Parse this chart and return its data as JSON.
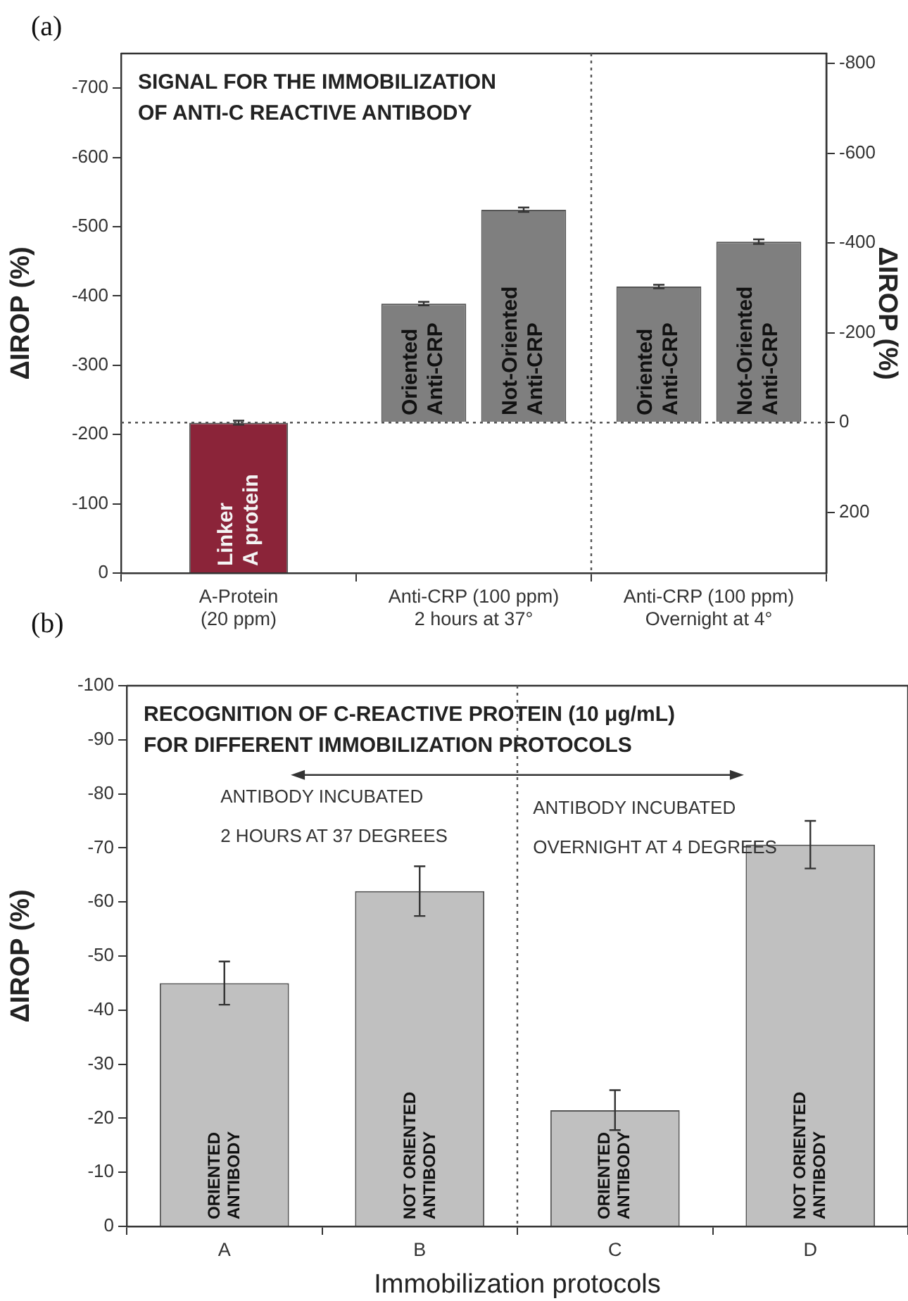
{
  "chart_data": [
    {
      "type": "bar",
      "title": "SIGNAL FOR THE IMMOBILIZATION\nOF ANTI-C REACTIVE ANTIBODY",
      "ylabel": "ΔIROP (%)",
      "y2label": "ΔIROP (%)",
      "annotations": [
        "(a)"
      ],
      "categories": [
        "A-Protein\n(20 ppm)",
        "Anti-CRP (100 ppm)\n2 hours at 37°",
        "Anti-CRP (100 ppm)\nOvernight at 4°"
      ],
      "series": [
        {
          "name": "Linker\nA protein",
          "color": "#8b2439",
          "values": [
            -217,
            null,
            null
          ],
          "errors": [
            3,
            null,
            null
          ]
        },
        {
          "name": "Oriented\nAnti-CRP",
          "color": "#7f7f7f",
          "axis": "y2",
          "values": [
            null,
            -265,
            -303
          ],
          "errors": [
            null,
            4,
            4
          ]
        },
        {
          "name": "Not-Oriented\nAnti-CRP",
          "color": "#7f7f7f",
          "axis": "y2",
          "values": [
            null,
            -474,
            -403
          ],
          "errors": [
            null,
            5,
            5
          ]
        }
      ],
      "ylim": [
        0,
        -750
      ],
      "yticks": [
        0,
        -100,
        -200,
        -300,
        -400,
        -500,
        -600,
        -700
      ],
      "y2lim": [
        335,
        -822
      ],
      "y2ticks": [
        200,
        0,
        -200,
        -400,
        -600,
        -800
      ],
      "ref_lines": [
        {
          "axis": "y2",
          "value": 0,
          "line_style": "dotted"
        }
      ],
      "grid": false,
      "legend": false
    },
    {
      "type": "bar",
      "title": "RECOGNITION OF C-REACTIVE PROTEIN (10 μg/mL)\nFOR DIFFERENT IMMOBILIZATION PROTOCOLS",
      "xlabel": "Immobilization protocols",
      "ylabel": "ΔIROP (%)",
      "annotations": [
        "(b)",
        "ANTIBODY INCUBATED\n2 HOURS AT 37 DEGREES",
        "ANTIBODY INCUBATED\nOVERNIGHT AT 4 DEGREES"
      ],
      "categories": [
        "A",
        "B",
        "C",
        "D"
      ],
      "series": [
        {
          "name": "ORIENTED\nANTIBODY",
          "color": "#c0c0c0",
          "values": [
            -45,
            null,
            -21.5,
            null
          ],
          "errors": [
            4,
            null,
            3.7,
            null
          ]
        },
        {
          "name": "NOT ORIENTED\nANTIBODY",
          "color": "#c0c0c0",
          "values": [
            null,
            -62,
            null,
            -70.6
          ],
          "errors": [
            null,
            4.6,
            null,
            4.4
          ]
        }
      ],
      "ylim": [
        0,
        -100
      ],
      "yticks": [
        0,
        -10,
        -20,
        -30,
        -40,
        -50,
        -60,
        -70,
        -80,
        -90,
        -100
      ],
      "grid": false,
      "legend": false
    }
  ]
}
